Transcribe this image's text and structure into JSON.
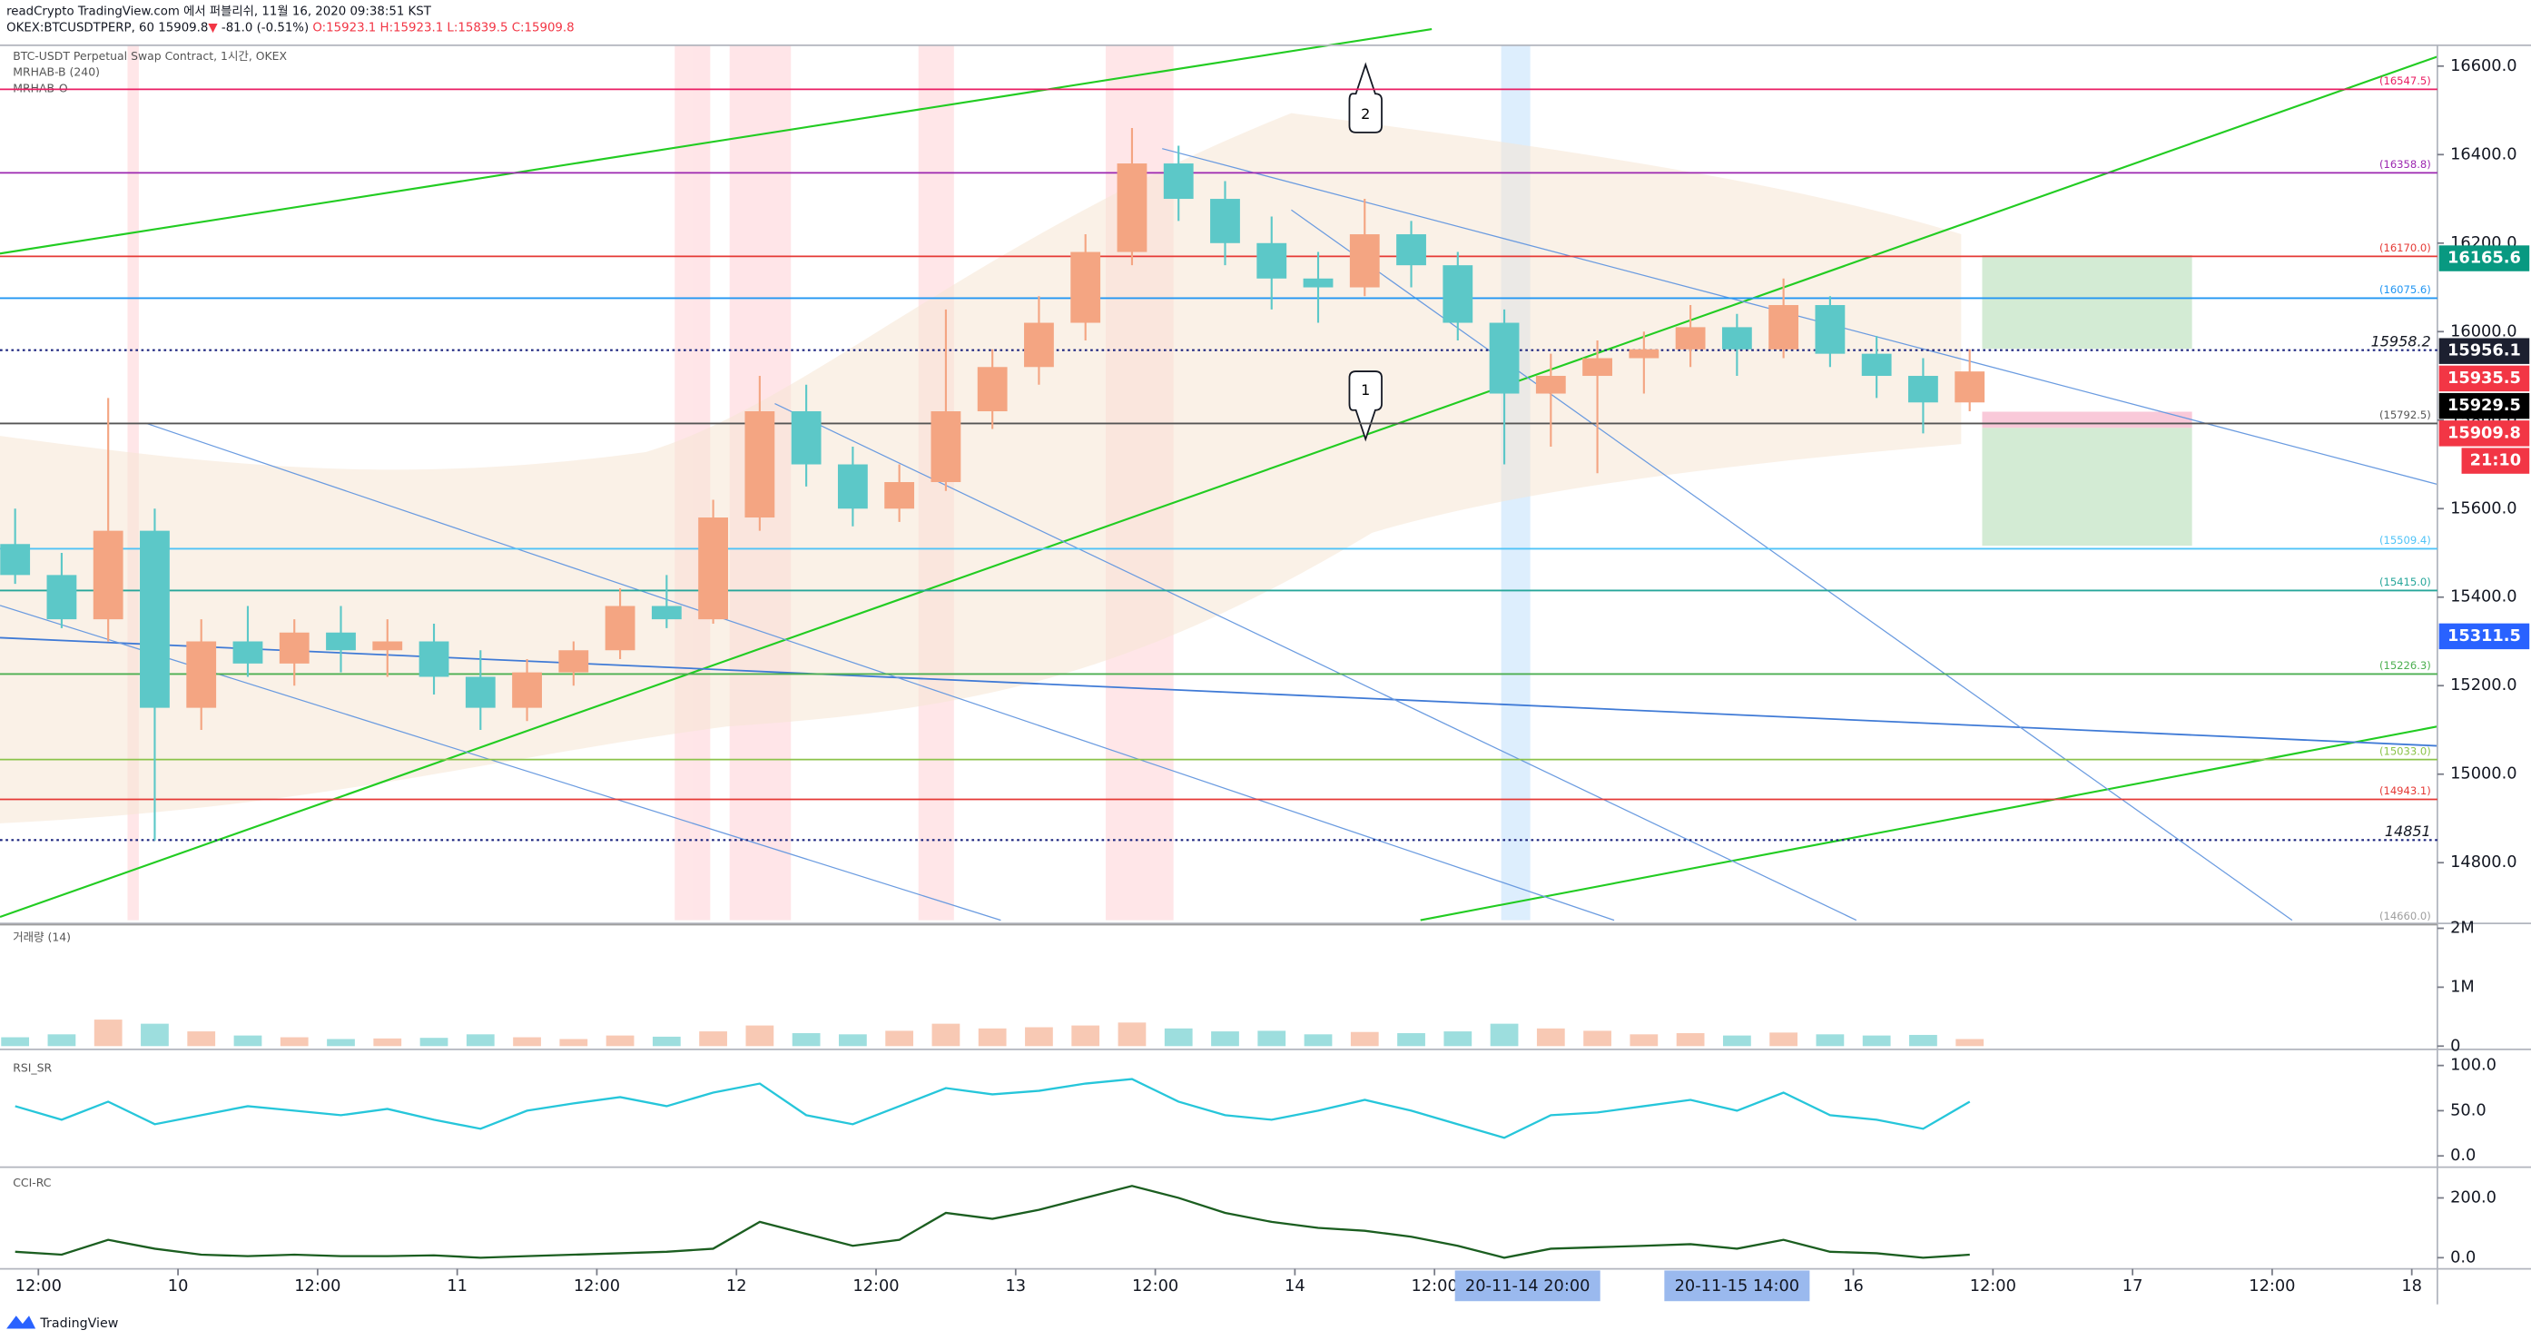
{
  "header": {
    "line1": "readCrypto TradingView.com 에서 퍼블리쉬, 11월 16, 2020 09:38:51 KST",
    "symbol": "OKEX:BTCUSDTPERP, 60",
    "last": "15909.8",
    "arrow": "▼",
    "change": "-81.0 (-0.51%)",
    "open": "O:15923.1",
    "high": "H:15923.1",
    "low": "L:15839.5",
    "close": "C:15909.8"
  },
  "footer": "TradingView",
  "chart_data": [
    {
      "type": "candlestick",
      "title": "BTC-USDT Perpetual Swap Contract, 1시간, OKEX",
      "indicators": [
        "MRHAB-B (240)",
        "MRHAB-O"
      ],
      "x": [
        -14,
        -10,
        -6,
        -2,
        2,
        6,
        10,
        14,
        18,
        22,
        26,
        30,
        34,
        38,
        42,
        46,
        50,
        54,
        58,
        62,
        66,
        70,
        74,
        78,
        82,
        86,
        90,
        94,
        98,
        102,
        106,
        110,
        114,
        118,
        122,
        126,
        130,
        134,
        138,
        142,
        146,
        150,
        154
      ],
      "open": [
        15520,
        15450,
        15350,
        15550,
        15150,
        15300,
        15250,
        15320,
        15280,
        15300,
        15220,
        15150,
        15230,
        15280,
        15380,
        15350,
        15580,
        15820,
        15700,
        15600,
        15660,
        15820,
        15920,
        16020,
        16180,
        16380,
        16300,
        16200,
        16120,
        16100,
        16220,
        16150,
        16020,
        15860,
        15900,
        15940,
        15960,
        16010,
        15960,
        16060,
        15950,
        15900,
        15840
      ],
      "high": [
        15600,
        15500,
        15850,
        15600,
        15350,
        15380,
        15350,
        15380,
        15350,
        15340,
        15280,
        15260,
        15300,
        15420,
        15450,
        15620,
        15900,
        15880,
        15740,
        15700,
        16050,
        15960,
        16080,
        16220,
        16460,
        16420,
        16340,
        16260,
        16180,
        16300,
        16250,
        16180,
        16050,
        15950,
        15980,
        16000,
        16060,
        16040,
        16120,
        16080,
        15990,
        15940,
        15960
      ],
      "low": [
        15430,
        15330,
        15300,
        14850,
        15100,
        15220,
        15200,
        15230,
        15220,
        15180,
        15100,
        15120,
        15200,
        15260,
        15330,
        15340,
        15550,
        15650,
        15560,
        15570,
        15640,
        15780,
        15880,
        15980,
        16150,
        16250,
        16150,
        16050,
        16020,
        16080,
        16100,
        15980,
        15700,
        15740,
        15680,
        15860,
        15920,
        15900,
        15940,
        15920,
        15850,
        15770,
        15820
      ],
      "close": [
        15450,
        15350,
        15550,
        15150,
        15300,
        15250,
        15320,
        15280,
        15300,
        15220,
        15150,
        15230,
        15280,
        15380,
        15350,
        15580,
        15820,
        15700,
        15600,
        15660,
        15820,
        15920,
        16020,
        16180,
        16380,
        16300,
        16200,
        16120,
        16100,
        16220,
        16150,
        16020,
        15860,
        15900,
        15940,
        15960,
        16010,
        15960,
        16060,
        15950,
        15900,
        15840,
        15910
      ],
      "up_color": "#f4a582",
      "down_color": "#5cc8c8",
      "xlim": [
        -15.3,
        194.2
      ],
      "xticks": [
        {
          "value": -12,
          "label": "12:00"
        },
        {
          "value": 0,
          "label": "10"
        },
        {
          "value": 12,
          "label": "12:00"
        },
        {
          "value": 24,
          "label": "11"
        },
        {
          "value": 36,
          "label": "12:00"
        },
        {
          "value": 48,
          "label": "12"
        },
        {
          "value": 60,
          "label": "12:00"
        },
        {
          "value": 72,
          "label": "13"
        },
        {
          "value": 84,
          "label": "12:00"
        },
        {
          "value": 96,
          "label": "14"
        },
        {
          "value": 108,
          "label": "12:00"
        },
        {
          "value": 144,
          "label": "16"
        },
        {
          "value": 156,
          "label": "12:00"
        },
        {
          "value": 168,
          "label": "17"
        },
        {
          "value": 180,
          "label": "12:00"
        },
        {
          "value": 192,
          "label": "18"
        }
      ],
      "time_markers": [
        {
          "value": 116,
          "label": "20-11-14  20:00"
        },
        {
          "value": 134,
          "label": "20-11-15  14:00"
        }
      ],
      "ylim": [
        14670,
        16647
      ],
      "yticks": [
        {
          "value": 14800,
          "label": "14800.0"
        },
        {
          "value": 15000,
          "label": "15000.0"
        },
        {
          "value": 15200,
          "label": "15200.0"
        },
        {
          "value": 15400,
          "label": "15400.0"
        },
        {
          "value": 15600,
          "label": "15600.0"
        },
        {
          "value": 15800,
          "label": "15800.0"
        },
        {
          "value": 16000,
          "label": "16000.0"
        },
        {
          "value": 16200,
          "label": "16200.0"
        },
        {
          "value": 16400,
          "label": "16400.0"
        },
        {
          "value": 16600,
          "label": "16600.0"
        }
      ],
      "levels": [
        {
          "value": 16547.5,
          "label": "(16547.5)",
          "color": "#e91e63",
          "dotted": false
        },
        {
          "value": 16358.8,
          "label": "(16358.8)",
          "color": "#9c27b0",
          "dotted": false
        },
        {
          "value": 16170.0,
          "label": "(16170.0)",
          "color": "#e53935",
          "dotted": false
        },
        {
          "value": 16075.6,
          "label": "(16075.6)",
          "color": "#2196f3",
          "dotted": false
        },
        {
          "value": 15958.2,
          "label": "15958.2",
          "color": "#1a237e",
          "dotted": true
        },
        {
          "value": 15792.5,
          "label": "(15792.5)",
          "color": "#555555",
          "dotted": false
        },
        {
          "value": 15509.4,
          "label": "(15509.4)",
          "color": "#4fc3f7",
          "dotted": false
        },
        {
          "value": 15415.0,
          "label": "(15415.0)",
          "color": "#26a69a",
          "dotted": false
        },
        {
          "value": 15226.3,
          "label": "(15226.3)",
          "color": "#4caf50",
          "dotted": false
        },
        {
          "value": 15033.0,
          "label": "(15033.0)",
          "color": "#8bc34a",
          "dotted": false
        },
        {
          "value": 14943.1,
          "label": "(14943.1)",
          "color": "#e53935",
          "dotted": false
        },
        {
          "value": 14851,
          "label": "14851",
          "color": "#1a237e",
          "dotted": true
        },
        {
          "value": 14660.0,
          "label": "(14660.0)",
          "color": "#9e9e9e",
          "dotted": false
        }
      ],
      "price_tags": [
        {
          "value": 16165.6,
          "label": "16165.6",
          "color": "#089981"
        },
        {
          "value": 15956.1,
          "label": "15956.1",
          "color": "#1c2030"
        },
        {
          "value": 15935.5,
          "label": "15935.5",
          "color": "#f23645"
        },
        {
          "value": 15929.5,
          "label": "15929.5",
          "color": "#000000"
        },
        {
          "value": 15909.8,
          "label": "15909.8",
          "color": "#f23645"
        },
        {
          "value": 15311.5,
          "label": "15311.5",
          "color": "#2962ff"
        }
      ],
      "countdown": "21:10",
      "annotations": [
        "1",
        "2"
      ]
    },
    {
      "type": "bar",
      "title": "거래량 (14)",
      "values": [
        150000,
        200000,
        450000,
        380000,
        250000,
        180000,
        150000,
        120000,
        130000,
        140000,
        200000,
        150000,
        120000,
        180000,
        160000,
        250000,
        350000,
        220000,
        200000,
        260000,
        380000,
        300000,
        320000,
        350000,
        400000,
        300000,
        250000,
        260000,
        200000,
        240000,
        220000,
        250000,
        380000,
        300000,
        260000,
        200000,
        220000,
        180000,
        230000,
        200000,
        180000,
        190000,
        120000
      ],
      "ylim": [
        0,
        2000000
      ],
      "yticks": [
        {
          "value": 0,
          "label": "0"
        },
        {
          "value": 1000000,
          "label": "1M"
        },
        {
          "value": 2000000,
          "label": "2M"
        }
      ]
    },
    {
      "type": "line",
      "title": "RSI_SR",
      "values": [
        55,
        40,
        60,
        35,
        45,
        55,
        50,
        45,
        52,
        40,
        30,
        50,
        58,
        65,
        55,
        70,
        80,
        45,
        35,
        55,
        75,
        68,
        72,
        80,
        85,
        60,
        45,
        40,
        50,
        62,
        50,
        35,
        20,
        45,
        48,
        55,
        62,
        50,
        70,
        45,
        40,
        30,
        60
      ],
      "color": "#26c6da",
      "ylim": [
        -10.7,
        114.3
      ],
      "yticks": [
        {
          "value": 0,
          "label": "0.0"
        },
        {
          "value": 50,
          "label": "50.0"
        },
        {
          "value": 100,
          "label": "100.0"
        }
      ]
    },
    {
      "type": "line",
      "title": "CCI-RC",
      "values": [
        20,
        10,
        60,
        30,
        10,
        5,
        10,
        5,
        5,
        8,
        0,
        5,
        10,
        15,
        20,
        30,
        120,
        80,
        40,
        60,
        150,
        130,
        160,
        200,
        240,
        200,
        150,
        120,
        100,
        90,
        70,
        40,
        0,
        30,
        35,
        40,
        45,
        30,
        60,
        20,
        15,
        0,
        10
      ],
      "color": "#1b5e20",
      "ylim": [
        -32,
        292
      ],
      "yticks": [
        {
          "value": 0,
          "label": "0.0"
        },
        {
          "value": 200,
          "label": "200.0"
        }
      ]
    }
  ]
}
